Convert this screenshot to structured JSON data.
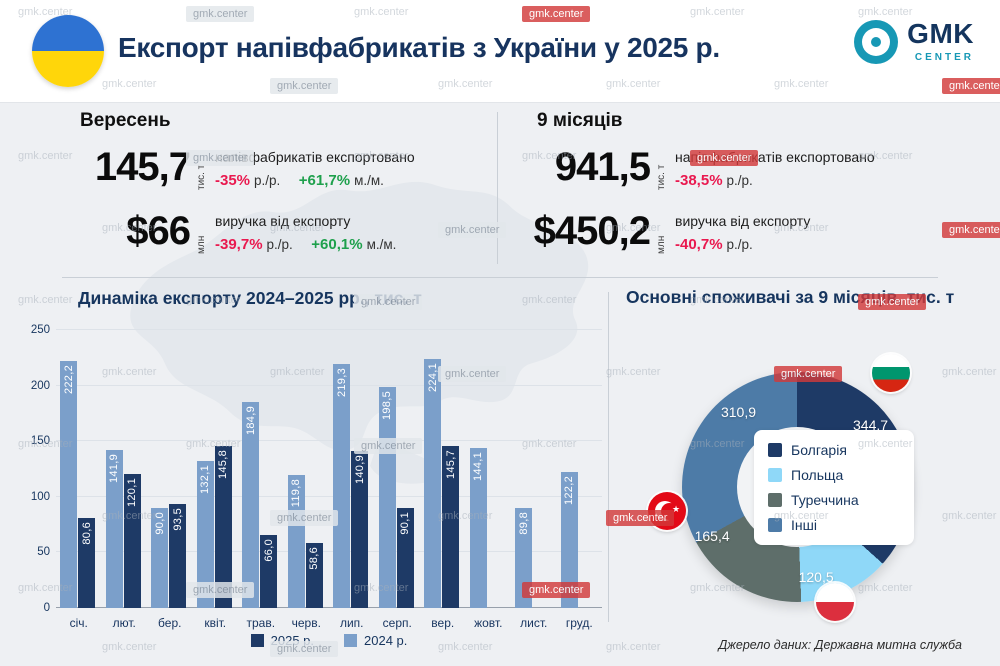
{
  "header": {
    "title": "Експорт напівфабрикатів з України у 2025 р.",
    "logo_text": "GMK",
    "logo_subtext": "CENTER"
  },
  "watermark": "gmk.center",
  "colors": {
    "navy": "#1e3a66",
    "steel_blue": "#7b9fca",
    "sky": "#8fd8f8",
    "slate": "#5e6e6a",
    "other_blue": "#4d7ba7",
    "negative_red": "#e9194f",
    "positive_green": "#1ea04c",
    "title_navy": "#16355e",
    "logo_teal": "#1798b5"
  },
  "stats": [
    {
      "title": "Вересень",
      "rows": [
        {
          "value": "145,7",
          "unit": "тис. т",
          "label": "напівфабрикатів експортовано",
          "changes": [
            {
              "value": "-35%",
              "suffix": "р./р.",
              "dir": "down"
            },
            {
              "value": "+61,7%",
              "suffix": "м./м.",
              "dir": "up"
            }
          ]
        },
        {
          "value": "$66",
          "unit": "млн",
          "label": "виручка від експорту",
          "changes": [
            {
              "value": "-39,7%",
              "suffix": "р./р.",
              "dir": "down"
            },
            {
              "value": "+60,1%",
              "suffix": "м./м.",
              "dir": "up"
            }
          ]
        }
      ]
    },
    {
      "title": "9 місяців",
      "rows": [
        {
          "value": "941,5",
          "unit": "тис. т",
          "label": "напівфабрикатів експортовано",
          "changes": [
            {
              "value": "-38,5%",
              "suffix": "р./р.",
              "dir": "down"
            }
          ]
        },
        {
          "value": "$450,2",
          "unit": "млн",
          "label": "виручка від експорту",
          "changes": [
            {
              "value": "-40,7%",
              "suffix": "р./р.",
              "dir": "down"
            }
          ]
        }
      ]
    }
  ],
  "chart_data": [
    {
      "type": "bar",
      "title": "Динаміка експорту 2024–2025 рр., тис. т",
      "categories": [
        "січ.",
        "лют.",
        "бер.",
        "квіт.",
        "трав.",
        "черв.",
        "лип.",
        "серп.",
        "вер.",
        "жовт.",
        "лист.",
        "груд."
      ],
      "series": [
        {
          "name": "2025 р.",
          "color": "#1e3a66",
          "values": [
            80.6,
            120.1,
            93.5,
            145.8,
            66.0,
            58.6,
            140.9,
            90.1,
            145.7,
            null,
            null,
            null
          ]
        },
        {
          "name": "2024 р.",
          "color": "#7b9fca",
          "values": [
            222.2,
            141.9,
            90.0,
            132.1,
            184.9,
            119.8,
            219.3,
            198.5,
            224.1,
            144.1,
            89.8,
            122.2
          ]
        }
      ],
      "ylabel": "",
      "ylim": [
        0,
        250
      ],
      "yticks": [
        0,
        50,
        100,
        150,
        200,
        250
      ],
      "grid": true,
      "legend_position": "bottom",
      "value_labels": "rotated vertical, white, inside bar tops"
    },
    {
      "type": "pie",
      "variant": "donut",
      "title": "Основні споживачі за 9 місяців, тис. т",
      "direction": "clockwise",
      "start_angle_deg": 0,
      "legend_position": "overlay center-right",
      "slices": [
        {
          "label": "Болгарія",
          "value": 344.7,
          "color": "#1e3a66",
          "flag": "bulgaria"
        },
        {
          "label": "Польща",
          "value": 120.5,
          "color": "#8fd8f8",
          "flag": "poland"
        },
        {
          "label": "Туреччина",
          "value": 165.4,
          "color": "#5e6e6a",
          "flag": "turkey"
        },
        {
          "label": "Інші",
          "value": 310.9,
          "color": "#4d7ba7",
          "flag": null
        }
      ]
    }
  ],
  "source": "Джерело даних: Державна митна служба"
}
